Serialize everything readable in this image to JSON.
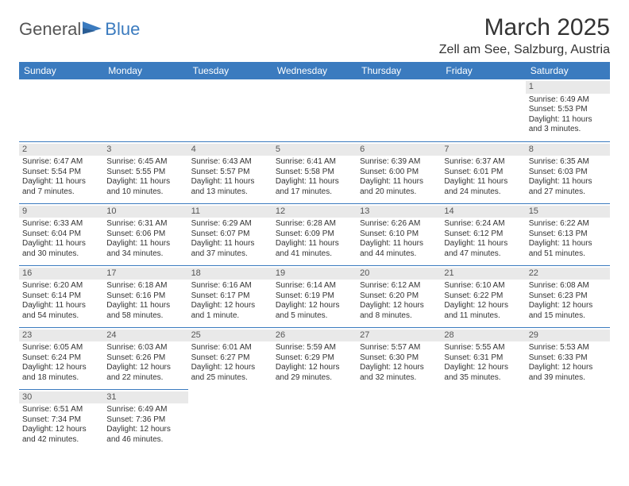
{
  "logo": {
    "part1": "General",
    "part2": "Blue"
  },
  "title": "March 2025",
  "location": "Zell am See, Salzburg, Austria",
  "dayHeaders": [
    "Sunday",
    "Monday",
    "Tuesday",
    "Wednesday",
    "Thursday",
    "Friday",
    "Saturday"
  ],
  "colors": {
    "headerBg": "#3b7bbf",
    "headerText": "#ffffff",
    "dayStrip": "#e9e9e9",
    "brandBlue": "#3b7bbf",
    "text": "#333333"
  },
  "weeks": [
    [
      null,
      null,
      null,
      null,
      null,
      null,
      {
        "num": "1",
        "sunrise": "Sunrise: 6:49 AM",
        "sunset": "Sunset: 5:53 PM",
        "daylight1": "Daylight: 11 hours",
        "daylight2": "and 3 minutes."
      }
    ],
    [
      {
        "num": "2",
        "sunrise": "Sunrise: 6:47 AM",
        "sunset": "Sunset: 5:54 PM",
        "daylight1": "Daylight: 11 hours",
        "daylight2": "and 7 minutes."
      },
      {
        "num": "3",
        "sunrise": "Sunrise: 6:45 AM",
        "sunset": "Sunset: 5:55 PM",
        "daylight1": "Daylight: 11 hours",
        "daylight2": "and 10 minutes."
      },
      {
        "num": "4",
        "sunrise": "Sunrise: 6:43 AM",
        "sunset": "Sunset: 5:57 PM",
        "daylight1": "Daylight: 11 hours",
        "daylight2": "and 13 minutes."
      },
      {
        "num": "5",
        "sunrise": "Sunrise: 6:41 AM",
        "sunset": "Sunset: 5:58 PM",
        "daylight1": "Daylight: 11 hours",
        "daylight2": "and 17 minutes."
      },
      {
        "num": "6",
        "sunrise": "Sunrise: 6:39 AM",
        "sunset": "Sunset: 6:00 PM",
        "daylight1": "Daylight: 11 hours",
        "daylight2": "and 20 minutes."
      },
      {
        "num": "7",
        "sunrise": "Sunrise: 6:37 AM",
        "sunset": "Sunset: 6:01 PM",
        "daylight1": "Daylight: 11 hours",
        "daylight2": "and 24 minutes."
      },
      {
        "num": "8",
        "sunrise": "Sunrise: 6:35 AM",
        "sunset": "Sunset: 6:03 PM",
        "daylight1": "Daylight: 11 hours",
        "daylight2": "and 27 minutes."
      }
    ],
    [
      {
        "num": "9",
        "sunrise": "Sunrise: 6:33 AM",
        "sunset": "Sunset: 6:04 PM",
        "daylight1": "Daylight: 11 hours",
        "daylight2": "and 30 minutes."
      },
      {
        "num": "10",
        "sunrise": "Sunrise: 6:31 AM",
        "sunset": "Sunset: 6:06 PM",
        "daylight1": "Daylight: 11 hours",
        "daylight2": "and 34 minutes."
      },
      {
        "num": "11",
        "sunrise": "Sunrise: 6:29 AM",
        "sunset": "Sunset: 6:07 PM",
        "daylight1": "Daylight: 11 hours",
        "daylight2": "and 37 minutes."
      },
      {
        "num": "12",
        "sunrise": "Sunrise: 6:28 AM",
        "sunset": "Sunset: 6:09 PM",
        "daylight1": "Daylight: 11 hours",
        "daylight2": "and 41 minutes."
      },
      {
        "num": "13",
        "sunrise": "Sunrise: 6:26 AM",
        "sunset": "Sunset: 6:10 PM",
        "daylight1": "Daylight: 11 hours",
        "daylight2": "and 44 minutes."
      },
      {
        "num": "14",
        "sunrise": "Sunrise: 6:24 AM",
        "sunset": "Sunset: 6:12 PM",
        "daylight1": "Daylight: 11 hours",
        "daylight2": "and 47 minutes."
      },
      {
        "num": "15",
        "sunrise": "Sunrise: 6:22 AM",
        "sunset": "Sunset: 6:13 PM",
        "daylight1": "Daylight: 11 hours",
        "daylight2": "and 51 minutes."
      }
    ],
    [
      {
        "num": "16",
        "sunrise": "Sunrise: 6:20 AM",
        "sunset": "Sunset: 6:14 PM",
        "daylight1": "Daylight: 11 hours",
        "daylight2": "and 54 minutes."
      },
      {
        "num": "17",
        "sunrise": "Sunrise: 6:18 AM",
        "sunset": "Sunset: 6:16 PM",
        "daylight1": "Daylight: 11 hours",
        "daylight2": "and 58 minutes."
      },
      {
        "num": "18",
        "sunrise": "Sunrise: 6:16 AM",
        "sunset": "Sunset: 6:17 PM",
        "daylight1": "Daylight: 12 hours",
        "daylight2": "and 1 minute."
      },
      {
        "num": "19",
        "sunrise": "Sunrise: 6:14 AM",
        "sunset": "Sunset: 6:19 PM",
        "daylight1": "Daylight: 12 hours",
        "daylight2": "and 5 minutes."
      },
      {
        "num": "20",
        "sunrise": "Sunrise: 6:12 AM",
        "sunset": "Sunset: 6:20 PM",
        "daylight1": "Daylight: 12 hours",
        "daylight2": "and 8 minutes."
      },
      {
        "num": "21",
        "sunrise": "Sunrise: 6:10 AM",
        "sunset": "Sunset: 6:22 PM",
        "daylight1": "Daylight: 12 hours",
        "daylight2": "and 11 minutes."
      },
      {
        "num": "22",
        "sunrise": "Sunrise: 6:08 AM",
        "sunset": "Sunset: 6:23 PM",
        "daylight1": "Daylight: 12 hours",
        "daylight2": "and 15 minutes."
      }
    ],
    [
      {
        "num": "23",
        "sunrise": "Sunrise: 6:05 AM",
        "sunset": "Sunset: 6:24 PM",
        "daylight1": "Daylight: 12 hours",
        "daylight2": "and 18 minutes."
      },
      {
        "num": "24",
        "sunrise": "Sunrise: 6:03 AM",
        "sunset": "Sunset: 6:26 PM",
        "daylight1": "Daylight: 12 hours",
        "daylight2": "and 22 minutes."
      },
      {
        "num": "25",
        "sunrise": "Sunrise: 6:01 AM",
        "sunset": "Sunset: 6:27 PM",
        "daylight1": "Daylight: 12 hours",
        "daylight2": "and 25 minutes."
      },
      {
        "num": "26",
        "sunrise": "Sunrise: 5:59 AM",
        "sunset": "Sunset: 6:29 PM",
        "daylight1": "Daylight: 12 hours",
        "daylight2": "and 29 minutes."
      },
      {
        "num": "27",
        "sunrise": "Sunrise: 5:57 AM",
        "sunset": "Sunset: 6:30 PM",
        "daylight1": "Daylight: 12 hours",
        "daylight2": "and 32 minutes."
      },
      {
        "num": "28",
        "sunrise": "Sunrise: 5:55 AM",
        "sunset": "Sunset: 6:31 PM",
        "daylight1": "Daylight: 12 hours",
        "daylight2": "and 35 minutes."
      },
      {
        "num": "29",
        "sunrise": "Sunrise: 5:53 AM",
        "sunset": "Sunset: 6:33 PM",
        "daylight1": "Daylight: 12 hours",
        "daylight2": "and 39 minutes."
      }
    ],
    [
      {
        "num": "30",
        "sunrise": "Sunrise: 6:51 AM",
        "sunset": "Sunset: 7:34 PM",
        "daylight1": "Daylight: 12 hours",
        "daylight2": "and 42 minutes."
      },
      {
        "num": "31",
        "sunrise": "Sunrise: 6:49 AM",
        "sunset": "Sunset: 7:36 PM",
        "daylight1": "Daylight: 12 hours",
        "daylight2": "and 46 minutes."
      },
      null,
      null,
      null,
      null,
      null
    ]
  ]
}
